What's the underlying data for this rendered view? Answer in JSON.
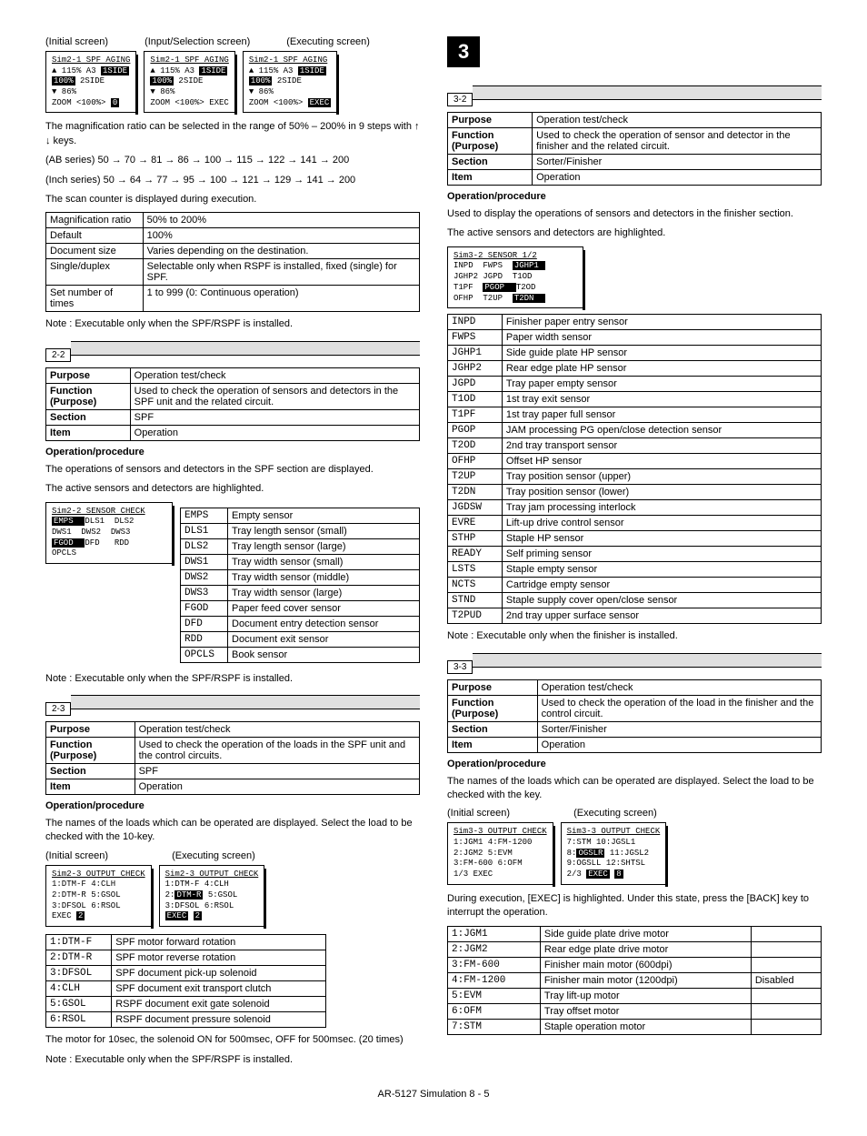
{
  "footer": "AR-5127 Simulation 8 - 5",
  "left": {
    "screenLabels": [
      "(Initial screen)",
      "(Input/Selection screen)",
      "(Executing screen)"
    ],
    "scr1": {
      "title": "Sim2-1 SPF AGING",
      "l1": "▲ 115%    A3 ",
      "hl1": "1SIDE",
      "l2": "  ",
      "hl2": "100%",
      "l2b": "       2SIDE",
      "l3": "▼ 86%",
      "l4": "ZOOM <100%>      ",
      "hl4": "0"
    },
    "scr2": {
      "title": "Sim2-1 SPF AGING",
      "l1": "▲ 115%    A3 ",
      "hl1": "1SIDE",
      "l2": "  ",
      "hl2": "100%",
      "l2b": "       2SIDE",
      "l3": "▼ 86%",
      "l4": "ZOOM <100%>   EXEC"
    },
    "scr3": {
      "title": "Sim2-1 SPF AGING",
      "l1": "▲ 115%    A3 ",
      "hl1": "1SIDE",
      "l2": "  ",
      "hl2": "100%",
      "l2b": "       2SIDE",
      "l3": "▼ 86%",
      "l4": "ZOOM <100%>   ",
      "hl4": "EXEC"
    },
    "p1": "The magnification ratio can be selected in the range of 50% – 200% in 9 steps with ↑ ↓ keys.",
    "p2": "(AB series) 50 → 70 → 81 → 86 → 100 → 115 → 122 → 141 → 200",
    "p3": "(Inch series) 50 → 64 → 77 → 95 → 100 → 121 → 129 → 141 → 200",
    "p4": "The scan counter is displayed during execution.",
    "tbl1": [
      [
        "Magnification ratio",
        "50% to 200%"
      ],
      [
        "Default",
        "100%"
      ],
      [
        "Document size",
        "Varies depending on the destination."
      ],
      [
        "Single/duplex",
        "Selectable only when RSPF is installed, fixed (single) for SPF."
      ],
      [
        "Set number of times",
        "1 to 999 (0: Continuous operation)"
      ]
    ],
    "note1": "Note : Executable only when the SPF/RSPF is installed.",
    "tag22": "2-2",
    "tbl22": [
      [
        "Purpose",
        "Operation test/check"
      ],
      [
        "Function (Purpose)",
        "Used to check the operation of sensors and detectors in the SPF unit and the related circuit."
      ],
      [
        "Section",
        "SPF"
      ],
      [
        "Item",
        "Operation"
      ]
    ],
    "oph": "Operation/procedure",
    "p22a": "The operations of sensors and detectors in the SPF section are displayed.",
    "p22b": "The active sensors and detectors are highlighted.",
    "scr22": {
      "title": "Sim2-2 SENSOR CHECK",
      "rows": [
        [
          "EMPS",
          "DLS1",
          "DLS2"
        ],
        [
          "DWS1",
          "DWS2",
          "DWS3"
        ],
        [
          "FGOD",
          "DFD",
          "RDD"
        ],
        [
          "OPCLS",
          "",
          ""
        ]
      ],
      "hl": [
        "EMPS",
        "FGOD"
      ]
    },
    "tbl22s": [
      [
        "EMPS",
        "Empty sensor"
      ],
      [
        "DLS1",
        "Tray length sensor (small)"
      ],
      [
        "DLS2",
        "Tray length sensor (large)"
      ],
      [
        "DWS1",
        "Tray width sensor (small)"
      ],
      [
        "DWS2",
        "Tray width sensor (middle)"
      ],
      [
        "DWS3",
        "Tray width sensor (large)"
      ],
      [
        "FGOD",
        "Paper feed cover sensor"
      ],
      [
        "DFD",
        "Document entry detection sensor"
      ],
      [
        "RDD",
        "Document exit sensor"
      ],
      [
        "OPCLS",
        "Book sensor"
      ]
    ],
    "note22": "Note : Executable only when the SPF/RSPF is installed.",
    "tag23": "2-3",
    "tbl23": [
      [
        "Purpose",
        "Operation test/check"
      ],
      [
        "Function (Purpose)",
        "Used to check the operation of the loads in the SPF unit and the control circuits."
      ],
      [
        "Section",
        "SPF"
      ],
      [
        "Item",
        "Operation"
      ]
    ],
    "p23a": "The names of the loads which can be operated are displayed. Select the load to be checked with the 10-key.",
    "scrLabels23": [
      "(Initial screen)",
      "(Executing screen)"
    ],
    "scr23a": {
      "title": "Sim2-3 OUTPUT CHECK",
      "lines": [
        "1:DTM-F   4:CLH",
        "2:DTM-R   5:GSOL",
        "3:DFSOL   6:RSOL",
        "        EXEC    "
      ],
      "hl": "2"
    },
    "scr23b": {
      "title": "Sim2-3 OUTPUT CHECK",
      "lines": [
        "1:DTM-F   4:CLH",
        "2:",
        "DTM-R",
        "   5:GSOL",
        "3:DFSOL   6:RSOL",
        "        ",
        "EXEC",
        "    ",
        "2"
      ]
    },
    "tbl23s": [
      [
        "1:DTM-F",
        "SPF motor forward rotation"
      ],
      [
        "2:DTM-R",
        "SPF motor reverse rotation"
      ],
      [
        "3:DFSOL",
        "SPF document pick-up solenoid"
      ],
      [
        "4:CLH",
        "SPF document exit transport clutch"
      ],
      [
        "5:GSOL",
        "RSPF document exit gate solenoid"
      ],
      [
        "6:RSOL",
        "RSPF document pressure solenoid"
      ]
    ],
    "p23b": "The motor for 10sec, the solenoid ON for 500msec, OFF for 500msec. (20 times)",
    "note23": "Note : Executable only when the SPF/RSPF is installed."
  },
  "right": {
    "big": "3",
    "tag32": "3-2",
    "tbl32": [
      [
        "Purpose",
        "Operation test/check"
      ],
      [
        "Function (Purpose)",
        "Used to check the operation of sensor and detector in the finisher and the related circuit."
      ],
      [
        "Section",
        "Sorter/Finisher"
      ],
      [
        "Item",
        "Operation"
      ]
    ],
    "p32a": "Used to display the operations of sensors and detectors in the finisher section.",
    "p32b": "The active sensors and detectors are highlighted.",
    "scr32": {
      "title": "Sim3-2 SENSOR   1/2",
      "rows": [
        [
          "INPD",
          "FWPS",
          "JGHP1"
        ],
        [
          "JGHP2",
          "JGPD",
          "T1OD"
        ],
        [
          "T1PF",
          "PGOP",
          "T2OD"
        ],
        [
          "OFHP",
          "T2UP",
          "T2DN"
        ]
      ],
      "hl": [
        "JGHP1",
        "PGOP",
        "T2DN"
      ]
    },
    "tbl32s": [
      [
        "INPD",
        "Finisher paper entry sensor"
      ],
      [
        "FWPS",
        "Paper width sensor"
      ],
      [
        "JGHP1",
        "Side guide plate HP sensor"
      ],
      [
        "JGHP2",
        "Rear edge plate HP sensor"
      ],
      [
        "JGPD",
        "Tray paper empty sensor"
      ],
      [
        "T1OD",
        "1st tray exit sensor"
      ],
      [
        "T1PF",
        "1st tray paper full sensor"
      ],
      [
        "PGOP",
        "JAM processing PG open/close detection sensor"
      ],
      [
        "T2OD",
        "2nd tray transport sensor"
      ],
      [
        "OFHP",
        "Offset HP sensor"
      ],
      [
        "T2UP",
        "Tray position sensor (upper)"
      ],
      [
        "T2DN",
        "Tray position sensor (lower)"
      ],
      [
        "JGDSW",
        "Tray jam processing interlock"
      ],
      [
        "EVRE",
        "Lift-up drive control sensor"
      ],
      [
        "STHP",
        "Staple HP sensor"
      ],
      [
        "READY",
        "Self priming sensor"
      ],
      [
        "LSTS",
        "Staple empty sensor"
      ],
      [
        "NCTS",
        "Cartridge empty sensor"
      ],
      [
        "STND",
        "Staple supply cover open/close sensor"
      ],
      [
        "T2PUD",
        "2nd tray upper surface sensor"
      ]
    ],
    "note32": "Note : Executable only when the finisher is installed.",
    "tag33": "3-3",
    "tbl33": [
      [
        "Purpose",
        "Operation test/check"
      ],
      [
        "Function (Purpose)",
        "Used to check the operation of the load in the finisher and the control circuit."
      ],
      [
        "Section",
        "Sorter/Finisher"
      ],
      [
        "Item",
        "Operation"
      ]
    ],
    "p33a": "The names of the loads which can be operated are displayed. Select the load to be checked with the key.",
    "scrLabels33": [
      "(Initial screen)",
      "(Executing screen)"
    ],
    "scr33a": {
      "title": "Sim3-3 OUTPUT CHECK",
      "lines": [
        "1:JGM1   4:FM-1200",
        "2:JGM2   5:EVM",
        "3:FM-600 6:OFM",
        "1/3    EXEC"
      ]
    },
    "scr33b": {
      "title": "Sim3-3 OUTPUT CHECK",
      "lines": [
        "7:STM    10:JGSL1",
        "8:",
        "OGSLR",
        "  11:JGSL2",
        "9:OGSLL  12:SHTSL",
        "2/3    ",
        "EXEC",
        "    ",
        "8"
      ]
    },
    "p33b": "During execution, [EXEC] is highlighted. Under this state, press the [BACK] key to interrupt the operation.",
    "tbl33s": [
      [
        "1:JGM1",
        "Side guide plate drive motor",
        ""
      ],
      [
        "2:JGM2",
        "Rear edge plate drive motor",
        ""
      ],
      [
        "3:FM-600",
        "Finisher main motor (600dpi)",
        ""
      ],
      [
        "4:FM-1200",
        "Finisher main motor (1200dpi)",
        "Disabled"
      ],
      [
        "5:EVM",
        "Tray lift-up motor",
        ""
      ],
      [
        "6:OFM",
        "Tray offset motor",
        ""
      ],
      [
        "7:STM",
        "Staple operation motor",
        ""
      ]
    ]
  }
}
